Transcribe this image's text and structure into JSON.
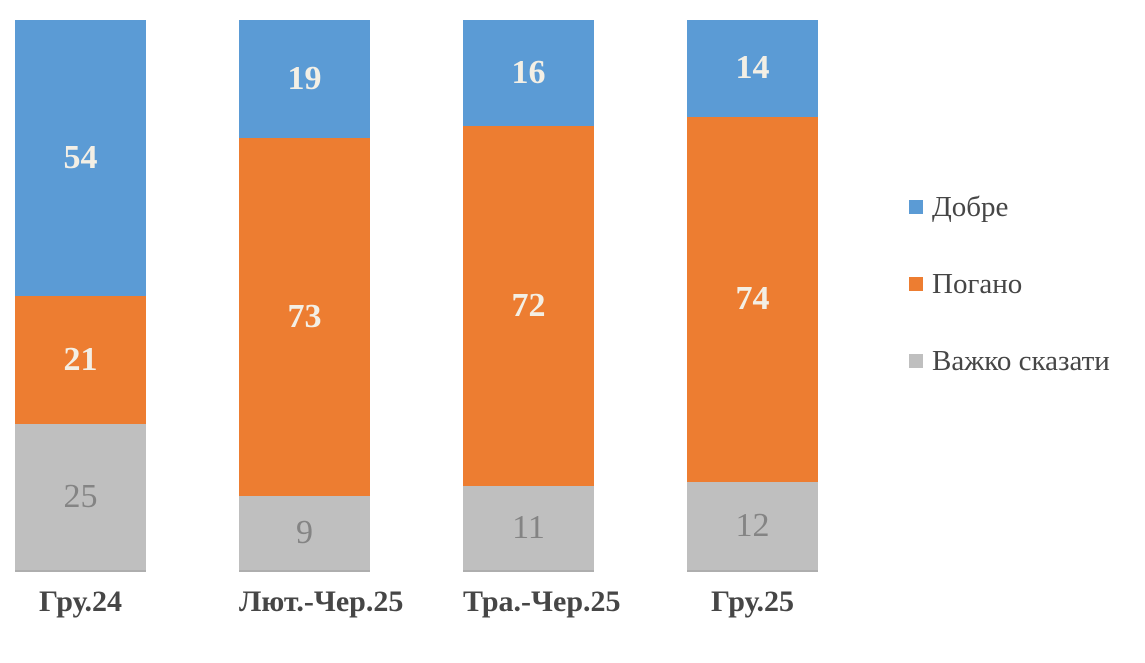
{
  "chart_data": {
    "type": "bar",
    "subtype": "stacked-100-column",
    "title": "",
    "xlabel": "",
    "ylabel": "",
    "ylim": [
      0,
      100
    ],
    "grid": false,
    "axes_visible": false,
    "legend_position": "right",
    "data_labels": "inside-center",
    "categories": [
      "Гру.24",
      "Лют.-Чер.25",
      "Тра.-Чер.25",
      "Гру.25"
    ],
    "series": [
      {
        "name": "Добре",
        "color": "#5B9BD5",
        "values": [
          54,
          19,
          16,
          14
        ]
      },
      {
        "name": "Погано",
        "color": "#ED7D31",
        "values": [
          21,
          73,
          72,
          74
        ]
      },
      {
        "name": "Важко сказати",
        "color": "#BFBFBF",
        "values": [
          25,
          9,
          11,
          12
        ]
      }
    ],
    "label_color_on_blue_orange": "#F3EFE5",
    "label_color_on_gray": "#848484",
    "category_label_color": "#464646",
    "legend_text_color": "#464646",
    "background_color": "#FFFFFF"
  }
}
